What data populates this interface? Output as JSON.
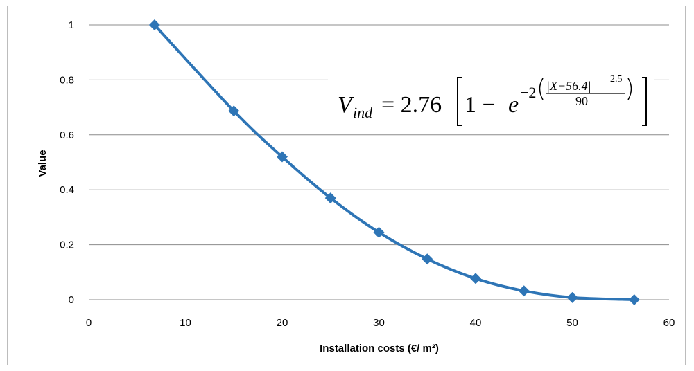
{
  "chart_data": {
    "type": "line",
    "xlabel": "Installation  costs (€/ m²)",
    "ylabel": "Value",
    "xlim": [
      0,
      60
    ],
    "ylim": [
      0,
      1
    ],
    "x_ticks": [
      "0",
      "10",
      "20",
      "30",
      "40",
      "50",
      "60"
    ],
    "y_ticks": [
      "0",
      "0.2",
      "0.4",
      "0.6",
      "0.8",
      "1"
    ],
    "grid": "horizontal",
    "marker": "diamond",
    "line_color": "#2E75B6",
    "series": [
      {
        "x": [
          6.8,
          15,
          20,
          25,
          30,
          35,
          40,
          45,
          50,
          56.4
        ],
        "y": [
          1.0,
          0.687,
          0.52,
          0.37,
          0.245,
          0.148,
          0.077,
          0.032,
          0.008,
          0.0
        ]
      }
    ],
    "annotation": {
      "lhs": "V",
      "lhs_sub": "ind",
      "coef": "= 2.76",
      "one_minus": "1 −",
      "base": "e",
      "exp_lead": "−2",
      "frac_num": "|X−56.4|",
      "frac_num_pow": "2.5",
      "frac_den": "90"
    }
  }
}
